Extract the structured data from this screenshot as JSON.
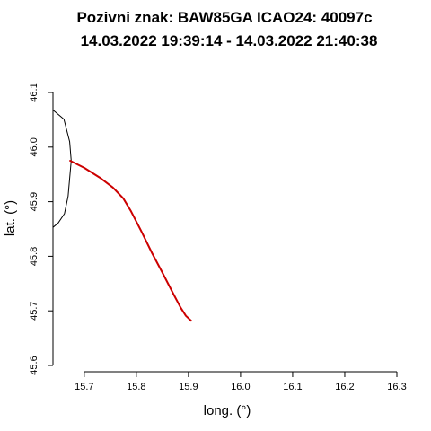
{
  "chart_data": {
    "type": "line",
    "title_line1": "Pozivni znak: BAW85GA  ICAO24: 40097c",
    "title_line2": "14.03.2022 19:39:14 - 14.03.2022 21:40:38",
    "xlabel": "long. (°)",
    "ylabel": "lat. (°)",
    "xlim": [
      15.64,
      16.3
    ],
    "ylim": [
      45.6,
      46.1
    ],
    "xticks": [
      "15.7",
      "15.8",
      "15.9",
      "16.0",
      "16.1",
      "16.2",
      "16.3"
    ],
    "yticks": [
      "45.6",
      "45.7",
      "45.8",
      "45.9",
      "46.0",
      "46.1"
    ],
    "series": [
      {
        "color": "#000000",
        "x": [
          15.64,
          15.661,
          15.672,
          15.675,
          15.669,
          15.662,
          15.65,
          15.64
        ],
        "y": [
          46.068,
          46.051,
          46.01,
          45.975,
          45.91,
          45.878,
          45.861,
          45.853
        ]
      },
      {
        "color": "#cc0000",
        "x": [
          15.673,
          15.7,
          15.73,
          15.755,
          15.775,
          15.79,
          15.81,
          15.83,
          15.85,
          15.87,
          15.885,
          15.895,
          15.905
        ],
        "y": [
          45.975,
          45.962,
          45.944,
          45.926,
          45.906,
          45.882,
          45.845,
          45.806,
          45.77,
          45.733,
          45.706,
          45.691,
          45.682
        ]
      }
    ]
  }
}
